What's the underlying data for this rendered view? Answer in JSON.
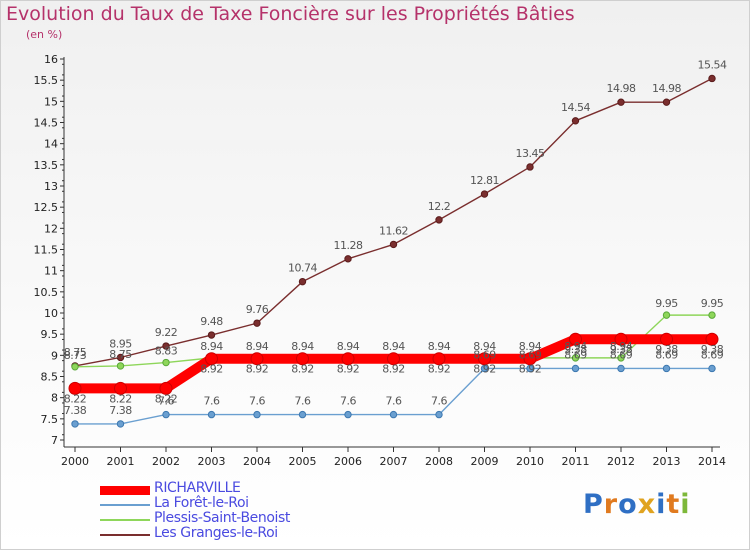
{
  "chart_data": {
    "type": "line",
    "title": "Evolution du Taux de Taxe Foncière sur les Propriétés Bâties",
    "subtitle": "(en %)",
    "x": [
      "2000",
      "2001",
      "2002",
      "2003",
      "2004",
      "2005",
      "2006",
      "2007",
      "2008",
      "2009",
      "2010",
      "2011",
      "2012",
      "2013",
      "2014"
    ],
    "y_ticks": [
      "7",
      "7.5",
      "8",
      "8.5",
      "9",
      "9.5",
      "10",
      "10.5",
      "11",
      "11.5",
      "12",
      "12.5",
      "13",
      "13.5",
      "14",
      "14.5",
      "15",
      "15.5",
      "16"
    ],
    "ylim": [
      7,
      16
    ],
    "grid": false,
    "series": [
      {
        "name": "RICHARVILLE",
        "color": "#ff0000",
        "values": [
          8.22,
          8.22,
          8.22,
          8.92,
          8.92,
          8.92,
          8.92,
          8.92,
          8.92,
          8.92,
          8.92,
          9.38,
          9.38,
          9.38,
          9.38
        ],
        "labels": [
          "8.22",
          "8.22",
          "8.22",
          "8.92",
          "8.92",
          "8.92",
          "8.92",
          "8.92",
          "8.92",
          "8.92",
          "8.92",
          "9.38",
          "9.38",
          "9.38",
          "9.38"
        ]
      },
      {
        "name": "La Forêt-le-Roi",
        "color": "#6a9fd0",
        "values": [
          7.38,
          7.38,
          7.6,
          7.6,
          7.6,
          7.6,
          7.6,
          7.6,
          7.6,
          8.69,
          8.69,
          8.69,
          8.69,
          8.69,
          8.69
        ],
        "labels": [
          "7.38",
          "7.38",
          "7.6",
          "7.6",
          "7.6",
          "7.6",
          "7.6",
          "7.6",
          "7.6",
          "8.69",
          "8.69",
          "8.69",
          "8.69",
          "8.69",
          "8.69"
        ]
      },
      {
        "name": "Plessis-Saint-Benoist",
        "color": "#8ed65a",
        "values": [
          8.73,
          8.75,
          8.83,
          8.94,
          8.94,
          8.94,
          8.94,
          8.94,
          8.94,
          8.94,
          8.94,
          8.94,
          8.94,
          9.95,
          9.95
        ],
        "labels": [
          "8.73",
          "8.75",
          "8.83",
          "8.94",
          "8.94",
          "8.94",
          "8.94",
          "8.94",
          "8.94",
          "8.94",
          "8.94",
          "8.94",
          "8.94",
          "9.95",
          "9.95"
        ]
      },
      {
        "name": "Les Granges-le-Roi",
        "color": "#7a2e2e",
        "values": [
          8.75,
          8.95,
          9.22,
          9.48,
          9.76,
          10.74,
          11.28,
          11.62,
          12.2,
          12.81,
          13.45,
          14.54,
          14.98,
          14.98,
          15.54
        ],
        "labels": [
          "8.75",
          "8.95",
          "9.22",
          "9.48",
          "9.76",
          "10.74",
          "11.28",
          "11.62",
          "12.2",
          "12.81",
          "13.45",
          "14.54",
          "14.98",
          "14.98",
          "15.54"
        ]
      }
    ],
    "legend_position": "bottom-left"
  },
  "logo": {
    "text": "Proxiti"
  }
}
